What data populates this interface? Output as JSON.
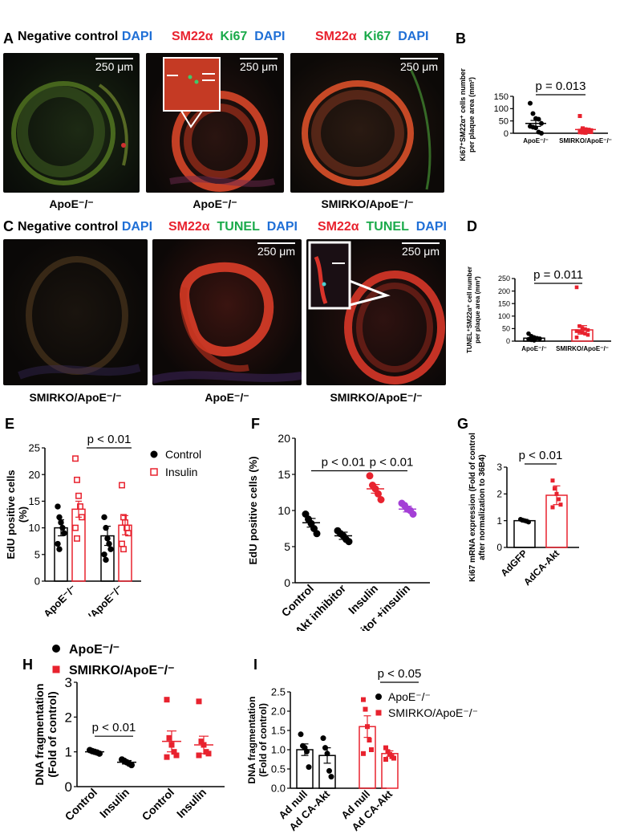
{
  "panels": {
    "A": {
      "label": "A",
      "image1": {
        "stain": [
          "Negative control",
          "DAPI"
        ],
        "scale": "250 μm",
        "caption": "ApoE⁻/⁻"
      },
      "image2": {
        "stain": [
          "SM22α",
          "Ki67",
          "DAPI"
        ],
        "scale": "250 μm",
        "caption": "ApoE⁻/⁻"
      },
      "image3": {
        "stain": [
          "SM22α",
          "Ki67",
          "DAPI"
        ],
        "scale": "250 μm",
        "caption": "SMIRKO/ApoE⁻/⁻"
      }
    },
    "C": {
      "label": "C",
      "image1": {
        "stain": [
          "Negative control",
          "DAPI"
        ],
        "scale": "",
        "caption": "SMIRKO/ApoE⁻/⁻"
      },
      "image2": {
        "stain": [
          "SM22α",
          "TUNEL",
          "DAPI"
        ],
        "scale": "250 μm",
        "caption": "ApoE⁻/⁻"
      },
      "image3": {
        "stain": [
          "SM22α",
          "TUNEL",
          "DAPI"
        ],
        "scale": "250 μm",
        "caption": "SMIRKO/ApoE⁻/⁻"
      }
    }
  },
  "chart_data": [
    {
      "panel": "B",
      "type": "scatter",
      "ylabel_lines": [
        "Ki67⁺SM22α⁺ cells number",
        "per plaque area (mm²)"
      ],
      "ylim": [
        0,
        150
      ],
      "yticks": [
        0,
        50,
        100,
        150
      ],
      "categories": [
        "ApoE⁻/⁻",
        "SMIRKO/ApoE⁻/⁻"
      ],
      "colors": [
        "#000000",
        "#e8222e"
      ],
      "means": [
        40,
        15
      ],
      "sem": [
        12,
        5
      ],
      "points": [
        [
          122,
          80,
          60,
          57,
          40,
          28,
          25,
          22,
          5,
          0
        ],
        [
          70,
          20,
          16,
          14,
          12,
          10,
          9,
          8,
          7,
          5,
          4,
          3,
          2
        ]
      ],
      "annotation": "p = 0.013"
    },
    {
      "panel": "D",
      "type": "bar",
      "ylabel_lines": [
        "TUNEL⁺SM22α⁺ cell number",
        "per plaque area (mm²)"
      ],
      "ylim": [
        0,
        250
      ],
      "yticks": [
        0,
        50,
        100,
        150,
        200,
        250
      ],
      "categories": [
        "ApoE⁻/⁻",
        "SMIRKO/ApoE⁻/⁻"
      ],
      "colors": [
        "#000000",
        "#e8222e"
      ],
      "values": [
        12,
        45
      ],
      "sem": [
        4,
        17
      ],
      "points": [
        [
          30,
          20,
          15,
          12,
          10,
          8,
          5,
          3
        ],
        [
          215,
          60,
          52,
          48,
          44,
          40,
          38,
          35,
          30,
          25,
          15
        ]
      ],
      "annotation": "p = 0.011"
    },
    {
      "panel": "E",
      "type": "bar",
      "ylabel_lines": [
        "EdU positive cells",
        "(%)"
      ],
      "ylim": [
        0,
        25
      ],
      "yticks": [
        0,
        5,
        10,
        15,
        20,
        25
      ],
      "categories": [
        "ApoE⁻/⁻",
        "SMIRKO/ApoE⁻/⁻"
      ],
      "series": [
        {
          "name": "Control",
          "color": "#000000",
          "values": [
            10,
            8.5
          ],
          "sem": [
            1.5,
            1.8
          ],
          "points": [
            [
              14,
              12,
              11,
              10,
              9,
              7,
              6
            ],
            [
              12,
              10,
              8,
              7,
              6,
              5,
              4
            ]
          ]
        },
        {
          "name": "Insulin",
          "color": "#e8222e",
          "values": [
            13.5,
            10.5
          ],
          "sem": [
            1.5,
            1.8
          ],
          "points": [
            [
              23,
              19,
              16,
              14,
              12,
              10,
              8
            ],
            [
              18,
              12,
              11,
              10,
              9,
              7,
              6
            ]
          ]
        }
      ],
      "annotation": "p < 0.01"
    },
    {
      "panel": "F",
      "type": "scatter",
      "ylabel_lines": [
        "EdU positive cells (%)"
      ],
      "ylim": [
        0,
        20
      ],
      "yticks": [
        0,
        5,
        10,
        15,
        20
      ],
      "categories": [
        "Control",
        "Akt inhibitor",
        "Insulin",
        "Akt inhibitor +insulin"
      ],
      "colors": [
        "#000000",
        "#000000",
        "#e8222e",
        "#a43fd6"
      ],
      "means": [
        8.3,
        6.5,
        13.0,
        10.2
      ],
      "sem": [
        0.6,
        0.5,
        0.6,
        0.4
      ],
      "points": [
        [
          9.5,
          8.8,
          8.2,
          7.5,
          6.8
        ],
        [
          7.2,
          6.8,
          6.5,
          6.0,
          5.7
        ],
        [
          14.8,
          13.5,
          13.0,
          12.3,
          11.5
        ],
        [
          11.0,
          10.7,
          10.2,
          10.0,
          9.5
        ]
      ],
      "annotations": [
        "p < 0.01",
        "p < 0.01"
      ]
    },
    {
      "panel": "G",
      "type": "bar",
      "ylabel_lines": [
        "Ki67 mRNA expression (Fold of control",
        "after normalization to 36B4)"
      ],
      "ylim": [
        0,
        3
      ],
      "yticks": [
        0,
        1,
        2,
        3
      ],
      "categories": [
        "AdGFP",
        "AdCA-Akt"
      ],
      "colors": [
        "#000000",
        "#e8222e"
      ],
      "values": [
        1.0,
        1.95
      ],
      "sem": [
        0.05,
        0.35
      ],
      "points": [
        [
          1.05,
          1.02,
          1.0,
          0.98,
          0.95
        ],
        [
          2.5,
          2.2,
          2.0,
          1.8,
          1.6,
          1.5
        ]
      ],
      "annotation": "p < 0.01"
    },
    {
      "panel": "H",
      "type": "scatter",
      "ylabel_lines": [
        "DNA fragmentation",
        "(Fold of control)"
      ],
      "ylim": [
        0,
        3
      ],
      "yticks": [
        0,
        1,
        2,
        3
      ],
      "categories": [
        "Control",
        "Insulin",
        "Control",
        "Insulin"
      ],
      "colors": [
        "#000000",
        "#000000",
        "#e8222e",
        "#e8222e"
      ],
      "means": [
        1.0,
        0.7,
        1.3,
        1.2
      ],
      "sem": [
        0.03,
        0.05,
        0.3,
        0.25
      ],
      "points": [
        [
          1.05,
          1.02,
          1.0,
          0.98,
          0.95
        ],
        [
          0.78,
          0.74,
          0.7,
          0.66,
          0.62
        ],
        [
          2.5,
          1.4,
          1.2,
          1.0,
          0.9,
          0.85
        ],
        [
          2.45,
          1.3,
          1.2,
          1.0,
          0.95,
          0.9
        ]
      ],
      "legend": [
        {
          "name": "ApoE⁻/⁻",
          "color": "#000000",
          "marker": "circle"
        },
        {
          "name": "SMIRKO/ApoE⁻/⁻",
          "color": "#e8222e",
          "marker": "square"
        }
      ],
      "annotation": "p < 0.01"
    },
    {
      "panel": "I",
      "type": "bar",
      "ylabel_lines": [
        "DNA fragmentation",
        "(Fold of control)"
      ],
      "ylim": [
        0,
        2.5
      ],
      "yticks": [
        0.0,
        0.5,
        1.0,
        1.5,
        2.0,
        2.5
      ],
      "categories": [
        "Ad null",
        "Ad CA-Akt",
        "Ad null",
        "Ad CA-Akt"
      ],
      "colors": [
        "#000000",
        "#000000",
        "#e8222e",
        "#e8222e"
      ],
      "values": [
        1.0,
        0.85,
        1.6,
        0.9
      ],
      "sem": [
        0.15,
        0.2,
        0.28,
        0.07
      ],
      "points": [
        [
          1.4,
          1.1,
          1.05,
          0.95,
          0.55
        ],
        [
          1.3,
          1.05,
          0.9,
          0.45,
          0.3
        ],
        [
          2.3,
          2.05,
          1.6,
          1.25,
          1.0,
          0.9
        ],
        [
          1.05,
          0.95,
          0.88,
          0.82,
          0.78,
          0.75
        ]
      ],
      "legend": [
        {
          "name": "ApoE⁻/⁻",
          "color": "#000000",
          "marker": "circle"
        },
        {
          "name": "SMIRKO/ApoE⁻/⁻",
          "color": "#e8222e",
          "marker": "square"
        }
      ],
      "annotation": "p < 0.05"
    }
  ]
}
